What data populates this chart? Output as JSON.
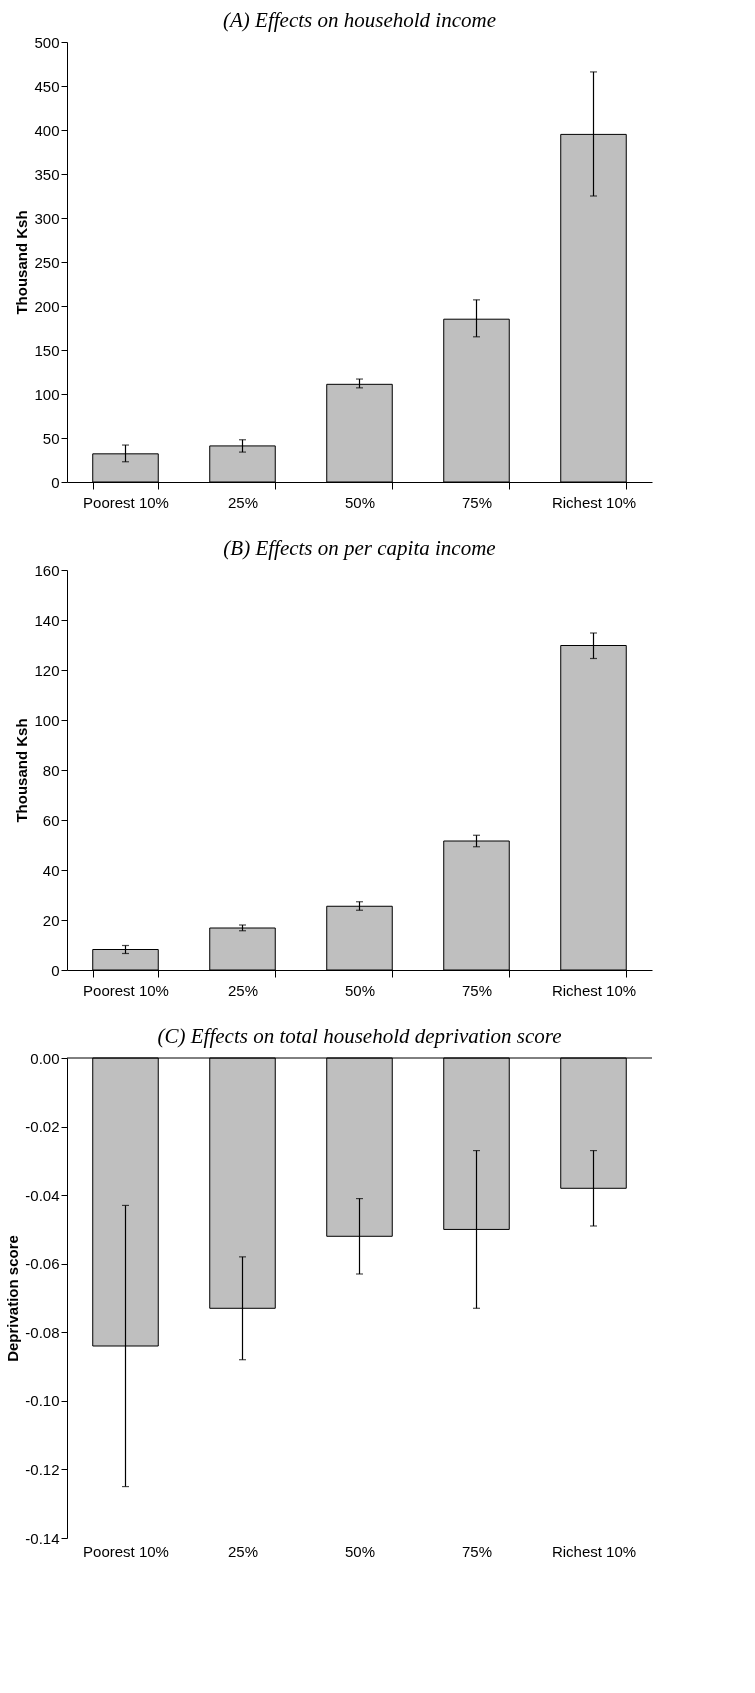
{
  "chart_data": [
    {
      "type": "bar",
      "title": "(A) Effects on household income",
      "ylabel": "Thousand Ksh",
      "categories": [
        "Poorest 10%",
        "25%",
        "50%",
        "75%",
        "Richest 10%"
      ],
      "values": [
        32,
        41,
        111,
        185,
        395
      ],
      "errors": [
        [
          23,
          42
        ],
        [
          34,
          48
        ],
        [
          107,
          117
        ],
        [
          165,
          207
        ],
        [
          325,
          466
        ]
      ],
      "colors": [
        "#bfbfbf",
        "#bfbfbf",
        "#bfbfbf",
        "#bfbfbf",
        "#bfbfbf"
      ],
      "ylim": [
        0,
        500
      ],
      "yticks": [
        0,
        50,
        100,
        150,
        200,
        250,
        300,
        350,
        400,
        450,
        500
      ],
      "grid": false
    },
    {
      "type": "bar",
      "title": "(B) Effects on per capita income",
      "ylabel": "Thousand Ksh",
      "categories": [
        "Poorest 10%",
        "25%",
        "50%",
        "75%",
        "Richest 10%"
      ],
      "values": [
        8.2,
        16.8,
        25.5,
        51.6,
        129.8
      ],
      "errors": [
        [
          6.6,
          9.8
        ],
        [
          15.7,
          18.0
        ],
        [
          23.9,
          27.3
        ],
        [
          49.3,
          53.9
        ],
        [
          124.6,
          134.8
        ]
      ],
      "colors": [
        "#bfbfbf",
        "#bfbfbf",
        "#bfbfbf",
        "#bfbfbf",
        "#bfbfbf"
      ],
      "ylim": [
        0,
        160
      ],
      "yticks": [
        0,
        20,
        40,
        60,
        80,
        100,
        120,
        140,
        160
      ],
      "grid": false
    },
    {
      "type": "bar",
      "title": "(C) Effects on total household deprivation score",
      "ylabel": "Deprivation score",
      "categories": [
        "Poorest 10%",
        "25%",
        "50%",
        "75%",
        "Richest 10%"
      ],
      "values": [
        -0.084,
        -0.073,
        -0.052,
        -0.05,
        -0.038
      ],
      "errors": [
        [
          -0.125,
          -0.043
        ],
        [
          -0.088,
          -0.058
        ],
        [
          -0.063,
          -0.041
        ],
        [
          -0.073,
          -0.027
        ],
        [
          -0.049,
          -0.027
        ]
      ],
      "colors": [
        "#bfbfbf",
        "#bfbfbf",
        "#bfbfbf",
        "#bfbfbf",
        "#bfbfbf"
      ],
      "ylim": [
        -0.14,
        0
      ],
      "yticks": [
        {
          "value": 0,
          "label": "0.00"
        },
        {
          "value": -0.02,
          "label": "-0.02"
        },
        {
          "value": -0.04,
          "label": "-0.04"
        },
        {
          "value": -0.06,
          "label": "-0.06"
        },
        {
          "value": -0.08,
          "label": "-0.08"
        },
        {
          "value": -0.1,
          "label": "-0.10"
        },
        {
          "value": -0.12,
          "label": "-0.12"
        },
        {
          "value": -0.14,
          "label": "-0.14"
        }
      ],
      "grid": false
    }
  ]
}
